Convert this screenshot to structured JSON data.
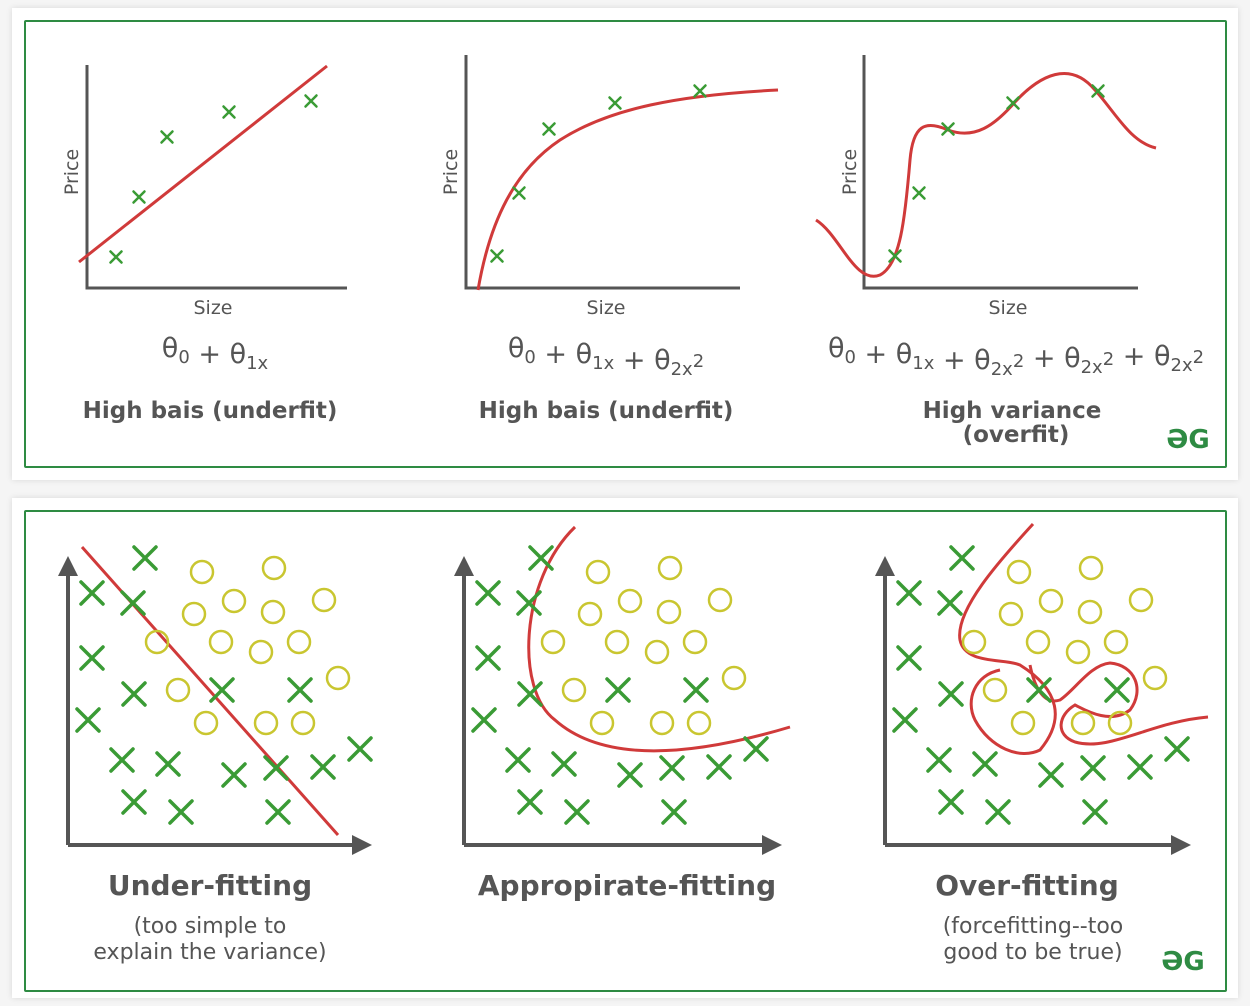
{
  "top_panels": [
    {
      "ylabel": "Price",
      "xlabel": "Size",
      "equation": [
        {
          "t": "θ",
          "sub": "0"
        },
        {
          "t": " + "
        },
        {
          "t": "θ",
          "sub": "1"
        },
        {
          "t": "x",
          "small": true
        }
      ],
      "caption": [
        "High bais (underfit)"
      ]
    },
    {
      "ylabel": "Price",
      "xlabel": "Size",
      "equation": [
        {
          "t": "θ",
          "sub": "0"
        },
        {
          "t": " + "
        },
        {
          "t": "θ",
          "sub": "1"
        },
        {
          "t": "x",
          "small": true
        },
        {
          "t": "  +  "
        },
        {
          "t": "θ",
          "sub": "2"
        },
        {
          "t": "x",
          "small": true,
          "sup": "2"
        }
      ],
      "caption": [
        "High bais (underfit)"
      ]
    },
    {
      "ylabel": "Price",
      "xlabel": "Size",
      "equation": [
        {
          "t": "θ",
          "sub": "0"
        },
        {
          "t": " + "
        },
        {
          "t": "θ",
          "sub": "1"
        },
        {
          "t": "x",
          "small": true
        },
        {
          "t": "  +  "
        },
        {
          "t": "θ",
          "sub": "2"
        },
        {
          "t": "x",
          "small": true,
          "sup": "2"
        },
        {
          "t": "  +  "
        },
        {
          "t": "θ",
          "sub": "2"
        },
        {
          "t": "x",
          "small": true,
          "sup": "2"
        },
        {
          "t": " + "
        },
        {
          "t": "θ",
          "sub": "2"
        },
        {
          "t": "x",
          "small": true,
          "sup": "2"
        }
      ],
      "caption": [
        "High variance",
        "(overfit)"
      ]
    }
  ],
  "bottom_panels": [
    {
      "caption": "Under-fitting",
      "subcaption": [
        "(too simple to",
        "explain the variance)"
      ]
    },
    {
      "caption": "Appropirate-fitting",
      "subcaption": []
    },
    {
      "caption": "Over-fitting",
      "subcaption": [
        "(forcefitting--too",
        "good to be true)"
      ]
    }
  ],
  "logo": "ƏG",
  "colors": {
    "frame": "#2e8b43",
    "marker_x": "#3a9b35",
    "curve": "#d03a3a",
    "circle": "#c9c630",
    "axis": "#555555",
    "text": "#555555"
  }
}
